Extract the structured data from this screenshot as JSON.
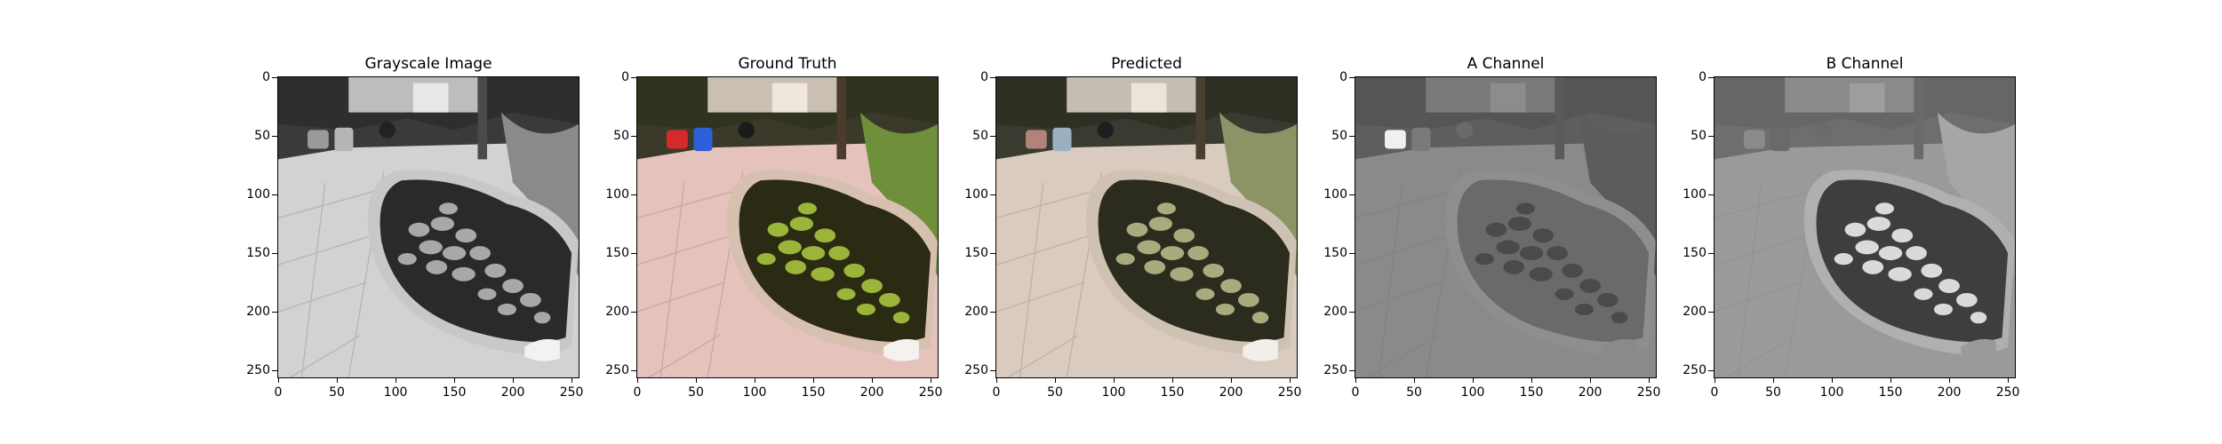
{
  "figure": {
    "panels": [
      {
        "title": "Grayscale Image",
        "kind": "gray"
      },
      {
        "title": "Ground Truth",
        "kind": "color"
      },
      {
        "title": "Predicted",
        "kind": "pred"
      },
      {
        "title": "A Channel",
        "kind": "achan"
      },
      {
        "title": "B Channel",
        "kind": "bchan"
      }
    ],
    "x_ticks": [
      "0",
      "50",
      "100",
      "150",
      "200",
      "250"
    ],
    "y_ticks": [
      "0",
      "50",
      "100",
      "150",
      "200",
      "250"
    ],
    "axis_range": [
      0,
      256
    ]
  }
}
